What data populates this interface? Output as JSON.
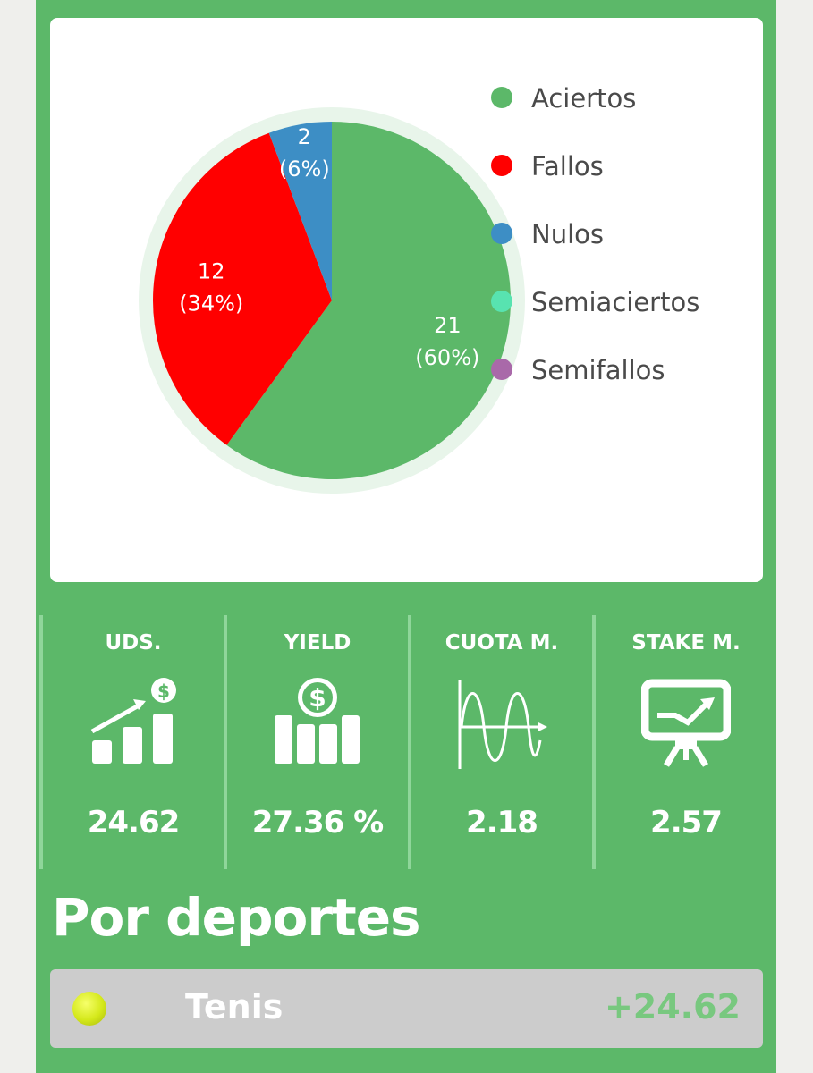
{
  "chart_data": {
    "type": "pie",
    "categories": [
      "Aciertos",
      "Fallos",
      "Nulos",
      "Semiaciertos",
      "Semifallos"
    ],
    "values": [
      21,
      12,
      2,
      0,
      0
    ],
    "slice_labels": [
      {
        "count": "21",
        "pct": "(60%)"
      },
      {
        "count": "12",
        "pct": "(34%)"
      },
      {
        "count": "2",
        "pct": "(6%)"
      }
    ],
    "colors": [
      "#5cb869",
      "#ff0000",
      "#3d8ec5",
      "#58e3b0",
      "#a969a9"
    ],
    "legend_position": "right"
  },
  "stats": [
    {
      "title": "UDS.",
      "value": "24.62",
      "icon": "chart-growth-icon"
    },
    {
      "title": "YIELD",
      "value": "27.36 %",
      "icon": "money-bars-icon"
    },
    {
      "title": "CUOTA M.",
      "value": "2.18",
      "icon": "wave-graph-icon"
    },
    {
      "title": "STAKE M.",
      "value": "2.57",
      "icon": "presentation-board-icon"
    }
  ],
  "section_title": "Por deportes",
  "sports": [
    {
      "name": "Tenis",
      "value": "+24.62",
      "icon": "tennis-ball-icon"
    }
  ],
  "colors": {
    "panel": "#5cb869",
    "row_bg": "#cccccc",
    "positive": "#78c87f"
  }
}
